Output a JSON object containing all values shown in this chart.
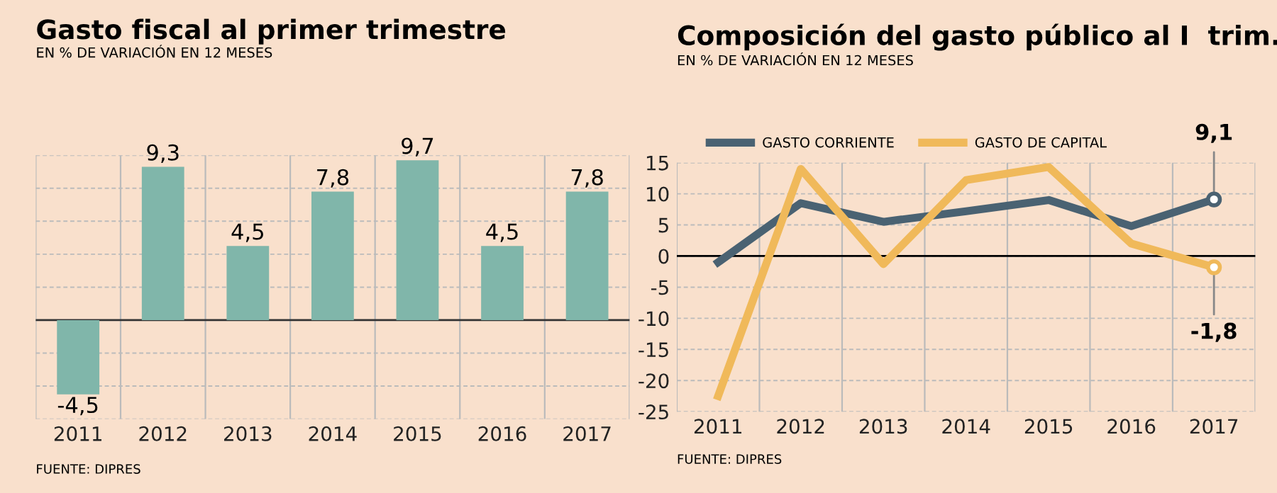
{
  "chart_data": [
    {
      "type": "bar",
      "title": "Gasto fiscal al primer trimestre",
      "subtitle": "EN % DE VARIACIÓN EN 12 MESES",
      "categories": [
        "2011",
        "2012",
        "2013",
        "2014",
        "2015",
        "2016",
        "2017"
      ],
      "values": [
        -4.5,
        9.3,
        4.5,
        7.8,
        9.7,
        4.5,
        7.8
      ],
      "color": "#80b6aa",
      "value_labels": [
        "-4,5",
        "9,3",
        "4,5",
        "7,8",
        "9,7",
        "4,5",
        "7,8"
      ],
      "ylim": [
        -6,
        10
      ],
      "yticks": [
        {
          "value": -6,
          "label": null
        },
        {
          "value": -4,
          "label": null
        },
        {
          "value": -2,
          "label": null
        },
        {
          "value": 0,
          "label": null
        },
        {
          "value": 2,
          "label": null
        },
        {
          "value": 4,
          "label": null
        },
        {
          "value": 6,
          "label": null
        },
        {
          "value": 8,
          "label": null
        },
        {
          "value": 10,
          "label": null
        }
      ],
      "tick_labels": "x",
      "grid": true,
      "ref_lines": [
        {
          "axis": "y",
          "value": 0,
          "color": "#333333"
        }
      ],
      "annotations": [
        "FUENTE: DIPRES"
      ]
    },
    {
      "type": "line",
      "title": "Composición del gasto público al I  trim.",
      "subtitle": "EN % DE VARIACIÓN EN 12 MESES",
      "categories": [
        "2011",
        "2012",
        "2013",
        "2014",
        "2015",
        "2016",
        "2017"
      ],
      "series": [
        {
          "name": "GASTO CORRIENTE",
          "color": "#4a6272",
          "values": [
            -1,
            8.5,
            5.5,
            7.2,
            9,
            4.8,
            9.1
          ],
          "value_labels": [
            null,
            null,
            null,
            null,
            null,
            null,
            "9,1"
          ]
        },
        {
          "name": "GASTO DE CAPITAL",
          "color": "#f0b95a",
          "values": [
            -22.5,
            14,
            -1.3,
            12.2,
            14.3,
            2,
            -1.8
          ],
          "value_labels": [
            null,
            null,
            null,
            null,
            null,
            null,
            "-1,8"
          ]
        }
      ],
      "ylim": [
        -25,
        15
      ],
      "yticks": [
        -25,
        -20,
        -15,
        -10,
        -5,
        0,
        5,
        10,
        15
      ],
      "grid": true,
      "legend": "top",
      "marker": "none",
      "line_style": "solid",
      "ref_lines": [
        {
          "axis": "y",
          "value": 0,
          "color": "#000000"
        }
      ],
      "annotations": [
        "FUENTE: DIPRES"
      ]
    }
  ]
}
